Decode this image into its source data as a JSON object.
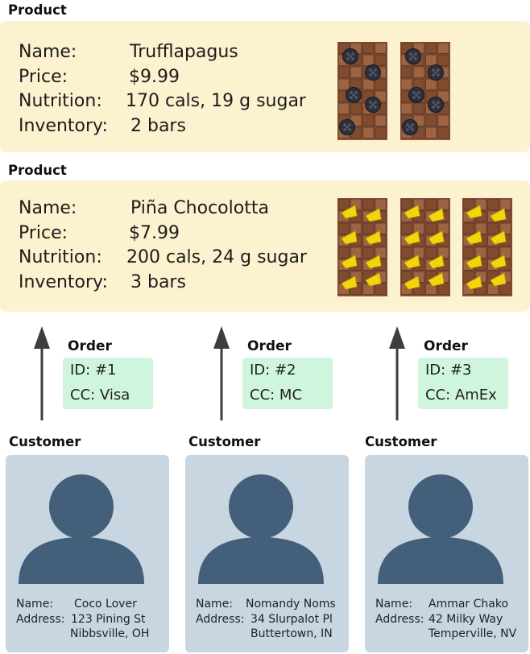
{
  "products": [
    {
      "section_label": "Product",
      "labels": {
        "name": "Name:",
        "price": "Price:",
        "nutrition": "Nutrition:",
        "inventory": "Inventory:"
      },
      "name": "Trufflapagus",
      "price": "$9.99",
      "nutrition": "170 cals, 19 g sugar",
      "inventory": "2 bars",
      "bar_count": 2,
      "bar_topping": "blackberry"
    },
    {
      "section_label": "Product",
      "labels": {
        "name": "Name:",
        "price": "Price:",
        "nutrition": "Nutrition:",
        "inventory": "Inventory:"
      },
      "name": "Piña Chocolotta",
      "price": "$7.99",
      "nutrition": "200 cals, 24 g sugar",
      "inventory": "3 bars",
      "bar_count": 3,
      "bar_topping": "pineapple"
    }
  ],
  "orders": [
    {
      "section_label": "Order",
      "id": "ID: #1",
      "cc": "CC: Visa"
    },
    {
      "section_label": "Order",
      "id": "ID: #2",
      "cc": "CC: MC"
    },
    {
      "section_label": "Order",
      "id": "ID: #3",
      "cc": "CC: AmEx"
    }
  ],
  "customers": [
    {
      "section_label": "Customer",
      "name_label": "Name:",
      "address_label": "Address:",
      "name": "Coco Lover",
      "address_line1": "123 Pining St",
      "address_line2": "Nibbsville, OH"
    },
    {
      "section_label": "Customer",
      "name_label": "Name:",
      "address_label": "Address:",
      "name": "Nomandy Noms",
      "address_line1": "34 Slurpalot Pl",
      "address_line2": "Buttertown, IN"
    },
    {
      "section_label": "Customer",
      "name_label": "Name:",
      "address_label": "Address:",
      "name": "Ammar Chako",
      "address_line1": "42 Milky Way",
      "address_line2": "Temperville, NV"
    }
  ],
  "colors": {
    "product_bg": "#fdf2cf",
    "order_bg": "#d0f5df",
    "customer_bg": "#c8d6e2",
    "avatar": "#445f7a",
    "chocolate": "#8b5638",
    "arrow": "#3e3e3e"
  }
}
